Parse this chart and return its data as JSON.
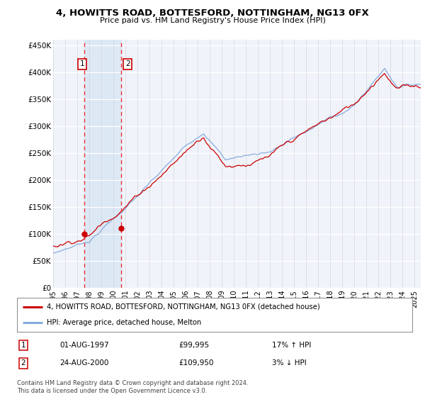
{
  "title": "4, HOWITTS ROAD, BOTTESFORD, NOTTINGHAM, NG13 0FX",
  "subtitle": "Price paid vs. HM Land Registry's House Price Index (HPI)",
  "ylim": [
    0,
    460000
  ],
  "yticks": [
    0,
    50000,
    100000,
    150000,
    200000,
    250000,
    300000,
    350000,
    400000,
    450000
  ],
  "ytick_labels": [
    "£0",
    "£50K",
    "£100K",
    "£150K",
    "£200K",
    "£250K",
    "£300K",
    "£350K",
    "£400K",
    "£450K"
  ],
  "xlim_start": 1995.0,
  "xlim_end": 2025.5,
  "sale1_date": 1997.583,
  "sale1_price": 99995,
  "sale2_date": 2000.644,
  "sale2_price": 109950,
  "legend_property": "4, HOWITTS ROAD, BOTTESFORD, NOTTINGHAM, NG13 0FX (detached house)",
  "legend_hpi": "HPI: Average price, detached house, Melton",
  "table_row1": [
    "1",
    "01-AUG-1997",
    "£99,995",
    "17% ↑ HPI"
  ],
  "table_row2": [
    "2",
    "24-AUG-2000",
    "£109,950",
    "3% ↓ HPI"
  ],
  "footer": "Contains HM Land Registry data © Crown copyright and database right 2024.\nThis data is licensed under the Open Government Licence v3.0.",
  "line_color_property": "#cc0000",
  "line_color_hpi": "#88aadd",
  "background_color": "#ffffff",
  "plot_bg_color": "#f0f4fa",
  "shade_color": "#dde8f5"
}
